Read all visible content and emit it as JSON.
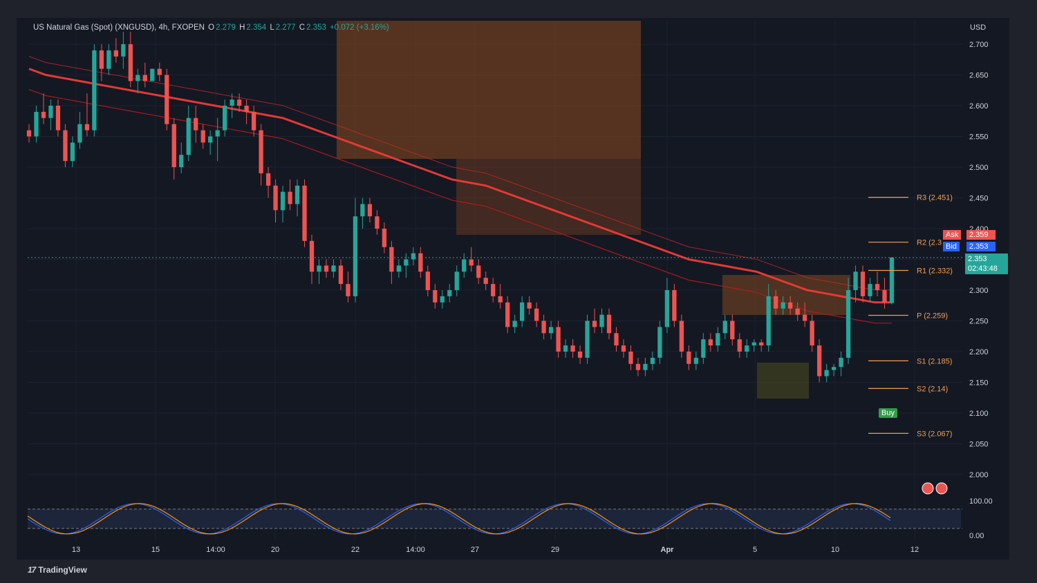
{
  "header": {
    "symbol": "US Natural Gas (Spot) (XNGUSD), 4h, FXOPEN",
    "o_label": "O",
    "o": "2.279",
    "h_label": "H",
    "h": "2.354",
    "l_label": "L",
    "l": "2.277",
    "c_label": "C",
    "c": "2.353",
    "change": "+0.072 (+3.16%)"
  },
  "currency": "USD",
  "brand": "TradingView",
  "ask": {
    "label": "Ask",
    "value": "2.359"
  },
  "bid": {
    "label": "Bid",
    "value": "2.353"
  },
  "last": {
    "price": "2.353",
    "countdown": "02:43:48"
  },
  "buy_label": "Buy",
  "colors": {
    "up": "#26a69a",
    "down": "#ef5350",
    "ema": "#e53935",
    "pivot": "#f0a050"
  },
  "chart_data": {
    "type": "candlestick",
    "y_ticks": [
      "2.700",
      "2.650",
      "2.600",
      "2.550",
      "2.500",
      "2.450",
      "2.400",
      "2.350",
      "2.300",
      "2.250",
      "2.200",
      "2.150",
      "2.100",
      "2.050",
      "2.000"
    ],
    "x_labels": [
      "13",
      "15",
      "14:00",
      "20",
      "22",
      "14:00",
      "27",
      "29",
      "Apr",
      "5",
      "10",
      "12"
    ],
    "ylim": [
      1.95,
      2.72
    ],
    "pivots": [
      {
        "label": "R3 (2.451)",
        "value": 2.451
      },
      {
        "label": "R2 (2.3",
        "value": 2.378
      },
      {
        "label": "R1 (2.332)",
        "value": 2.332
      },
      {
        "label": "P (2.259)",
        "value": 2.259
      },
      {
        "label": "S1 (2.185)",
        "value": 2.185
      },
      {
        "label": "S2 (2.14)",
        "value": 2.14
      },
      {
        "label": "S3 (2.067)",
        "value": 2.067
      }
    ],
    "candles": [
      [
        2.56,
        2.57,
        2.54,
        2.55
      ],
      [
        2.55,
        2.6,
        2.54,
        2.59
      ],
      [
        2.59,
        2.62,
        2.57,
        2.58
      ],
      [
        2.58,
        2.61,
        2.56,
        2.6
      ],
      [
        2.6,
        2.61,
        2.55,
        2.56
      ],
      [
        2.56,
        2.57,
        2.5,
        2.51
      ],
      [
        2.51,
        2.55,
        2.5,
        2.54
      ],
      [
        2.54,
        2.59,
        2.53,
        2.57
      ],
      [
        2.57,
        2.62,
        2.55,
        2.56
      ],
      [
        2.56,
        2.7,
        2.55,
        2.69
      ],
      [
        2.69,
        2.7,
        2.64,
        2.66
      ],
      [
        2.66,
        2.7,
        2.65,
        2.69
      ],
      [
        2.69,
        2.71,
        2.67,
        2.68
      ],
      [
        2.68,
        2.72,
        2.66,
        2.7
      ],
      [
        2.7,
        2.72,
        2.63,
        2.64
      ],
      [
        2.64,
        2.66,
        2.62,
        2.65
      ],
      [
        2.65,
        2.67,
        2.63,
        2.64
      ],
      [
        2.64,
        2.66,
        2.64,
        2.66
      ],
      [
        2.66,
        2.67,
        2.64,
        2.65
      ],
      [
        2.65,
        2.66,
        2.56,
        2.57
      ],
      [
        2.57,
        2.58,
        2.48,
        2.5
      ],
      [
        2.5,
        2.54,
        2.49,
        2.52
      ],
      [
        2.52,
        2.6,
        2.51,
        2.58
      ],
      [
        2.58,
        2.6,
        2.54,
        2.56
      ],
      [
        2.56,
        2.57,
        2.53,
        2.54
      ],
      [
        2.54,
        2.56,
        2.52,
        2.55
      ],
      [
        2.55,
        2.58,
        2.51,
        2.56
      ],
      [
        2.56,
        2.61,
        2.55,
        2.6
      ],
      [
        2.6,
        2.62,
        2.58,
        2.61
      ],
      [
        2.61,
        2.62,
        2.59,
        2.6
      ],
      [
        2.6,
        2.61,
        2.57,
        2.59
      ],
      [
        2.59,
        2.6,
        2.55,
        2.56
      ],
      [
        2.56,
        2.57,
        2.47,
        2.49
      ],
      [
        2.49,
        2.5,
        2.45,
        2.47
      ],
      [
        2.47,
        2.48,
        2.41,
        2.43
      ],
      [
        2.43,
        2.47,
        2.41,
        2.46
      ],
      [
        2.46,
        2.48,
        2.43,
        2.44
      ],
      [
        2.44,
        2.48,
        2.42,
        2.47
      ],
      [
        2.47,
        2.48,
        2.37,
        2.38
      ],
      [
        2.38,
        2.39,
        2.31,
        2.33
      ],
      [
        2.33,
        2.35,
        2.31,
        2.34
      ],
      [
        2.34,
        2.35,
        2.32,
        2.33
      ],
      [
        2.33,
        2.35,
        2.32,
        2.34
      ],
      [
        2.34,
        2.35,
        2.3,
        2.31
      ],
      [
        2.31,
        2.33,
        2.28,
        2.29
      ],
      [
        2.29,
        2.45,
        2.28,
        2.42
      ],
      [
        2.42,
        2.45,
        2.4,
        2.44
      ],
      [
        2.44,
        2.45,
        2.41,
        2.42
      ],
      [
        2.42,
        2.43,
        2.39,
        2.4
      ],
      [
        2.4,
        2.41,
        2.36,
        2.37
      ],
      [
        2.37,
        2.38,
        2.31,
        2.33
      ],
      [
        2.33,
        2.35,
        2.32,
        2.34
      ],
      [
        2.34,
        2.36,
        2.32,
        2.35
      ],
      [
        2.35,
        2.37,
        2.34,
        2.36
      ],
      [
        2.36,
        2.37,
        2.32,
        2.33
      ],
      [
        2.33,
        2.34,
        2.29,
        2.3
      ],
      [
        2.3,
        2.31,
        2.27,
        2.28
      ],
      [
        2.28,
        2.3,
        2.27,
        2.29
      ],
      [
        2.29,
        2.31,
        2.28,
        2.3
      ],
      [
        2.3,
        2.34,
        2.29,
        2.33
      ],
      [
        2.33,
        2.36,
        2.32,
        2.35
      ],
      [
        2.35,
        2.37,
        2.33,
        2.34
      ],
      [
        2.34,
        2.35,
        2.31,
        2.32
      ],
      [
        2.32,
        2.33,
        2.3,
        2.31
      ],
      [
        2.31,
        2.32,
        2.28,
        2.29
      ],
      [
        2.29,
        2.31,
        2.27,
        2.28
      ],
      [
        2.28,
        2.29,
        2.23,
        2.24
      ],
      [
        2.24,
        2.26,
        2.23,
        2.25
      ],
      [
        2.25,
        2.29,
        2.24,
        2.28
      ],
      [
        2.28,
        2.29,
        2.26,
        2.27
      ],
      [
        2.27,
        2.28,
        2.24,
        2.25
      ],
      [
        2.25,
        2.26,
        2.22,
        2.23
      ],
      [
        2.23,
        2.25,
        2.22,
        2.24
      ],
      [
        2.24,
        2.25,
        2.19,
        2.2
      ],
      [
        2.2,
        2.22,
        2.19,
        2.21
      ],
      [
        2.21,
        2.22,
        2.19,
        2.2
      ],
      [
        2.2,
        2.21,
        2.18,
        2.19
      ],
      [
        2.19,
        2.26,
        2.18,
        2.25
      ],
      [
        2.25,
        2.27,
        2.23,
        2.24
      ],
      [
        2.24,
        2.27,
        2.23,
        2.26
      ],
      [
        2.26,
        2.27,
        2.22,
        2.23
      ],
      [
        2.23,
        2.24,
        2.2,
        2.21
      ],
      [
        2.21,
        2.22,
        2.19,
        2.2
      ],
      [
        2.2,
        2.21,
        2.17,
        2.18
      ],
      [
        2.18,
        2.19,
        2.16,
        2.17
      ],
      [
        2.17,
        2.19,
        2.16,
        2.18
      ],
      [
        2.18,
        2.2,
        2.17,
        2.19
      ],
      [
        2.19,
        2.25,
        2.18,
        2.24
      ],
      [
        2.24,
        2.32,
        2.23,
        2.3
      ],
      [
        2.3,
        2.31,
        2.24,
        2.25
      ],
      [
        2.25,
        2.26,
        2.19,
        2.2
      ],
      [
        2.2,
        2.21,
        2.17,
        2.18
      ],
      [
        2.18,
        2.2,
        2.17,
        2.19
      ],
      [
        2.19,
        2.23,
        2.18,
        2.22
      ],
      [
        2.22,
        2.23,
        2.2,
        2.21
      ],
      [
        2.21,
        2.24,
        2.2,
        2.23
      ],
      [
        2.23,
        2.26,
        2.22,
        2.25
      ],
      [
        2.25,
        2.26,
        2.21,
        2.22
      ],
      [
        2.22,
        2.23,
        2.19,
        2.2
      ],
      [
        2.2,
        2.22,
        2.19,
        2.21
      ],
      [
        2.21,
        2.22,
        2.2,
        2.215
      ],
      [
        2.215,
        2.22,
        2.2,
        2.21
      ],
      [
        2.21,
        2.31,
        2.2,
        2.29
      ],
      [
        2.29,
        2.3,
        2.26,
        2.27
      ],
      [
        2.27,
        2.29,
        2.26,
        2.28
      ],
      [
        2.28,
        2.29,
        2.26,
        2.27
      ],
      [
        2.27,
        2.28,
        2.25,
        2.26
      ],
      [
        2.26,
        2.28,
        2.24,
        2.25
      ],
      [
        2.25,
        2.26,
        2.2,
        2.21
      ],
      [
        2.21,
        2.22,
        2.15,
        2.16
      ],
      [
        2.16,
        2.18,
        2.15,
        2.17
      ],
      [
        2.17,
        2.18,
        2.16,
        2.175
      ],
      [
        2.175,
        2.2,
        2.16,
        2.19
      ],
      [
        2.19,
        2.32,
        2.18,
        2.3
      ],
      [
        2.3,
        2.34,
        2.28,
        2.33
      ],
      [
        2.33,
        2.34,
        2.28,
        2.29
      ],
      [
        2.29,
        2.32,
        2.28,
        2.31
      ],
      [
        2.31,
        2.33,
        2.29,
        2.3
      ],
      [
        2.3,
        2.32,
        2.27,
        2.28
      ],
      [
        2.279,
        2.354,
        2.277,
        2.353
      ]
    ],
    "ema": [
      2.66,
      2.65,
      2.645,
      2.64,
      2.635,
      2.63,
      2.625,
      2.62,
      2.615,
      2.61,
      2.605,
      2.6,
      2.595,
      2.59,
      2.585,
      2.58,
      2.57,
      2.56,
      2.55,
      2.54,
      2.53,
      2.52,
      2.51,
      2.5,
      2.49,
      2.48,
      2.475,
      2.47,
      2.46,
      2.45,
      2.44,
      2.43,
      2.42,
      2.41,
      2.4,
      2.39,
      2.38,
      2.37,
      2.36,
      2.35,
      2.345,
      2.34,
      2.335,
      2.33,
      2.32,
      2.31,
      2.3,
      2.295,
      2.29,
      2.285,
      2.28,
      2.28
    ],
    "stoch_ylim": [
      0,
      100
    ],
    "stoch_labels": [
      "100.00",
      "0.00"
    ]
  }
}
